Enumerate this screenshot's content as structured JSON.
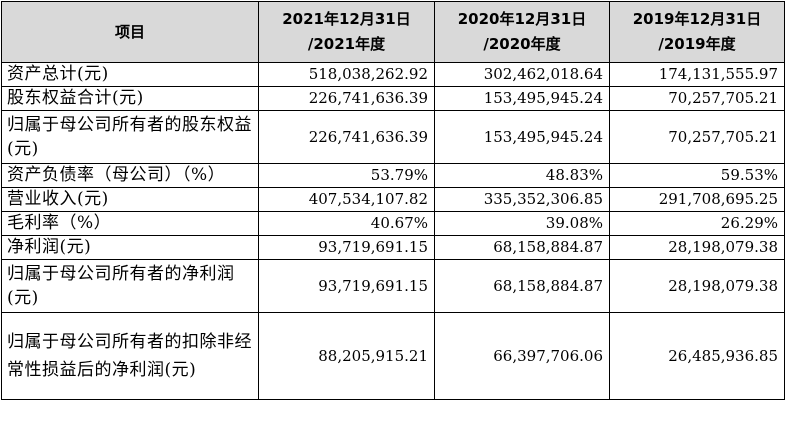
{
  "header": {
    "item_label": "项目",
    "col1": "2021年12月31日\n/2021年度",
    "col2": "2020年12月31日\n/2020年度",
    "col3": "2019年12月31日\n/2019年度"
  },
  "rows": [
    {
      "label": "资产总计(元)",
      "v2021": "518,038,262.92",
      "v2020": "302,462,018.64",
      "v2019": "174,131,555.97"
    },
    {
      "label": "股东权益合计(元)",
      "v2021": "226,741,636.39",
      "v2020": "153,495,945.24",
      "v2019": "70,257,705.21"
    },
    {
      "label": "归属于母公司所有者的股东权益(元)",
      "v2021": "226,741,636.39",
      "v2020": "153,495,945.24",
      "v2019": "70,257,705.21"
    },
    {
      "label": "资产负债率（母公司）（%）",
      "v2021": "53.79%",
      "v2020": "48.83%",
      "v2019": "59.53%"
    },
    {
      "label": "营业收入(元)",
      "v2021": "407,534,107.82",
      "v2020": "335,352,306.85",
      "v2019": "291,708,695.25"
    },
    {
      "label": "毛利率（%）",
      "v2021": "40.67%",
      "v2020": "39.08%",
      "v2019": "26.29%"
    },
    {
      "label": "净利润(元)",
      "v2021": "93,719,691.15",
      "v2020": "68,158,884.87",
      "v2019": "28,198,079.38"
    },
    {
      "label": "归属于母公司所有者的净利润(元)",
      "v2021": "93,719,691.15",
      "v2020": "68,158,884.87",
      "v2019": "28,198,079.38"
    },
    {
      "label": "归属于母公司所有者的扣除非经常性损益后的净利润(元)",
      "v2021": "88,205,915.21",
      "v2020": "66,397,706.06",
      "v2019": "26,485,936.85"
    }
  ]
}
